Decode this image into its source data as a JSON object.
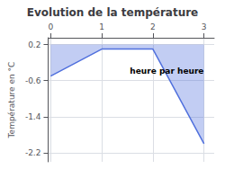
{
  "chart_data": {
    "type": "line",
    "title": "Evolution de la température",
    "ylabel": "Température en °C",
    "annotations": [
      {
        "text": "heure par heure",
        "x": 1.55,
        "y": -0.38
      }
    ],
    "x": [
      0,
      1,
      2,
      3
    ],
    "values": [
      -0.5,
      0.1,
      0.1,
      -2.0
    ],
    "fill_top": 0.2,
    "xlim": [
      -0.05,
      3.2
    ],
    "xticks": [
      0,
      1,
      2,
      3
    ],
    "ylim": [
      -2.4,
      0.35
    ],
    "yticks": [
      0.2,
      -0.6,
      -1.4,
      -2.2
    ],
    "grid": true
  }
}
